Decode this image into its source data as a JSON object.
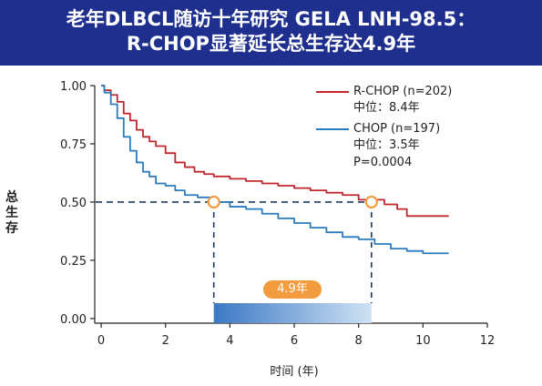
{
  "title": {
    "line1": "老年DLBCL随访十年研究 GELA LNH-98.5：",
    "line2": "R-CHOP显著延长总生存达4.9年"
  },
  "colors": {
    "header": "#1f2f8e",
    "rchop": "#c0282e",
    "chop": "#2a7cbf",
    "marker": "#f39c3f",
    "bar_start": "#3b78c4",
    "bar_end": "#cfe2f4"
  },
  "legend": {
    "rchop_name": "R-CHOP (n=202)",
    "rchop_median": "中位：8.4年",
    "chop_name": "CHOP (n=197)",
    "chop_median": "中位：3.5年",
    "pvalue": "P=0.0004"
  },
  "badge": "4.9年",
  "chart_data": {
    "type": "line",
    "xlabel": "时间 (年)",
    "ylabel": "总生存",
    "xlim": [
      -0.2,
      12
    ],
    "ylim": [
      -0.02,
      1.0
    ],
    "x_ticks": [
      0,
      2,
      4,
      6,
      8,
      10,
      12
    ],
    "y_ticks": [
      0.0,
      0.25,
      0.5,
      0.75,
      1.0
    ],
    "y_tick_labels": [
      "0.00",
      "0.25",
      "0.50",
      "0.75",
      "1.00"
    ],
    "series": [
      {
        "name": "R-CHOP (n=202)",
        "color": "#c0282e",
        "x": [
          0,
          0.1,
          0.3,
          0.5,
          0.7,
          0.9,
          1.1,
          1.3,
          1.5,
          1.7,
          2.0,
          2.3,
          2.6,
          2.9,
          3.2,
          3.5,
          4.0,
          4.5,
          5.0,
          5.5,
          6.0,
          6.5,
          7.0,
          7.5,
          8.0,
          8.4,
          8.8,
          9.2,
          9.5,
          10.0,
          10.8
        ],
        "y": [
          1.0,
          0.98,
          0.96,
          0.93,
          0.88,
          0.85,
          0.81,
          0.78,
          0.76,
          0.74,
          0.71,
          0.67,
          0.65,
          0.63,
          0.62,
          0.61,
          0.6,
          0.59,
          0.58,
          0.57,
          0.56,
          0.55,
          0.54,
          0.53,
          0.51,
          0.51,
          0.49,
          0.47,
          0.44,
          0.44,
          0.44
        ]
      },
      {
        "name": "CHOP (n=197)",
        "color": "#2a7cbf",
        "x": [
          0,
          0.1,
          0.3,
          0.5,
          0.7,
          0.9,
          1.1,
          1.3,
          1.5,
          1.7,
          2.0,
          2.3,
          2.6,
          3.0,
          3.5,
          4.0,
          4.5,
          5.0,
          5.5,
          6.0,
          6.5,
          7.0,
          7.5,
          8.0,
          8.5,
          9.0,
          9.5,
          10.0,
          10.8
        ],
        "y": [
          1.0,
          0.97,
          0.92,
          0.86,
          0.78,
          0.72,
          0.67,
          0.63,
          0.61,
          0.58,
          0.57,
          0.55,
          0.53,
          0.52,
          0.5,
          0.48,
          0.47,
          0.45,
          0.43,
          0.41,
          0.39,
          0.37,
          0.35,
          0.34,
          0.32,
          0.3,
          0.29,
          0.28,
          0.28
        ]
      }
    ],
    "reference_line_y": 0.5,
    "median_markers": [
      3.5,
      8.4
    ],
    "difference_label": "4.9年"
  }
}
